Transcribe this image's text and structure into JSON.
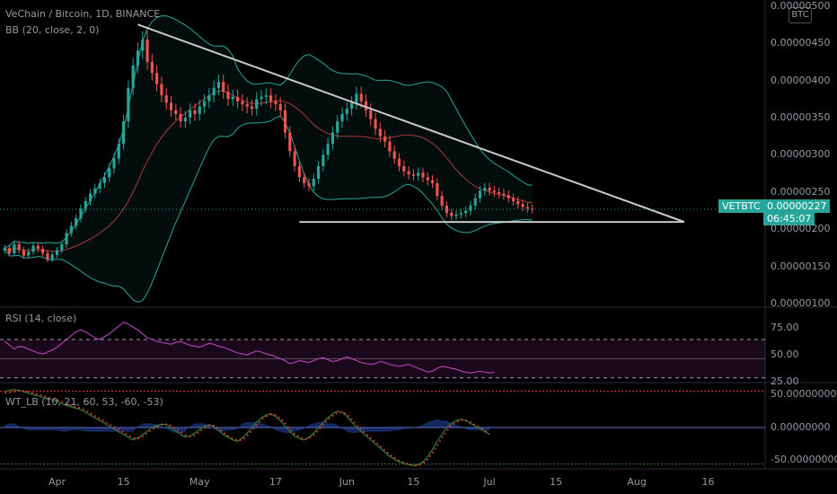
{
  "header": {
    "title": "VeChain / Bitcoin, 1D, BINANCE",
    "indicator": "BB (20, close, 2, 0)"
  },
  "currency_badge": "BTC",
  "price_badge": {
    "symbol": "VETBTC",
    "price": "0.00000227",
    "countdown": "06:45:07"
  },
  "rsi_pane": {
    "title": "RSI (14, close)",
    "ticks": [
      "75.00",
      "50.00",
      "25.00"
    ]
  },
  "wt_pane": {
    "title": "WT_LB (10, 21, 60, 53, -60, -53)",
    "ticks": [
      "50.00000000",
      "0.00000000",
      "-50.00000000"
    ]
  },
  "price_axis_ticks": [
    "0.00000500",
    "0.00000450",
    "0.00000400",
    "0.00000350",
    "0.00000300",
    "0.00000250",
    "0.00000200",
    "0.00000150",
    "0.00000100"
  ],
  "x_axis_ticks": [
    "Apr",
    "15",
    "May",
    "17",
    "Jun",
    "15",
    "Jul",
    "15",
    "Aug",
    "16"
  ],
  "colors": {
    "up": "#26a69a",
    "down": "#ef5350",
    "band": "#26a69a",
    "basis": "#a83a3a",
    "trendline": "#c8c8c8",
    "rsi": "#b03fb0",
    "wt1": "#2e7d32",
    "wt2": "#e53935",
    "wt_area": "#1e3a8a"
  },
  "chart_data": [
    {
      "type": "candlestick",
      "title": "VeChain / Bitcoin, 1D, BINANCE",
      "ylabel": "",
      "ylim": [
        1e-06,
        5e-06
      ],
      "x_range": [
        "2019-03-20",
        "2019-08-28"
      ],
      "series": [
        {
          "name": "VETBTC",
          "date_start": "2019-03-21",
          "close": [
            1.75e-06,
            1.68e-06,
            1.8e-06,
            1.72e-06,
            1.65e-06,
            1.7e-06,
            1.78e-06,
            1.74e-06,
            1.68e-06,
            1.6e-06,
            1.66e-06,
            1.72e-06,
            1.8e-06,
            1.95e-06,
            2.05e-06,
            2.15e-06,
            2.28e-06,
            2.38e-06,
            2.48e-06,
            2.55e-06,
            2.62e-06,
            2.7e-06,
            2.82e-06,
            2.95e-06,
            3.15e-06,
            3.45e-06,
            3.9e-06,
            4.2e-06,
            4.4e-06,
            4.55e-06,
            4.25e-06,
            4.1e-06,
            3.95e-06,
            3.8e-06,
            3.7e-06,
            3.6e-06,
            3.55e-06,
            3.45e-06,
            3.5e-06,
            3.6e-06,
            3.55e-06,
            3.65e-06,
            3.72e-06,
            3.8e-06,
            3.9e-06,
            3.98e-06,
            3.85e-06,
            3.75e-06,
            3.78e-06,
            3.72e-06,
            3.68e-06,
            3.65e-06,
            3.62e-06,
            3.75e-06,
            3.78e-06,
            3.8e-06,
            3.72e-06,
            3.68e-06,
            3.6e-06,
            3.3e-06,
            3.05e-06,
            2.85e-06,
            2.7e-06,
            2.62e-06,
            2.58e-06,
            2.68e-06,
            2.85e-06,
            3e-06,
            3.15e-06,
            3.3e-06,
            3.45e-06,
            3.55e-06,
            3.62e-06,
            3.7e-06,
            3.82e-06,
            3.72e-06,
            3.6e-06,
            3.48e-06,
            3.35e-06,
            3.25e-06,
            3.18e-06,
            3.05e-06,
            2.95e-06,
            2.85e-06,
            2.78e-06,
            2.74e-06,
            2.72e-06,
            2.76e-06,
            2.7e-06,
            2.66e-06,
            2.62e-06,
            2.45e-06,
            2.32e-06,
            2.22e-06,
            2.18e-06,
            2.2e-06,
            2.22e-06,
            2.25e-06,
            2.32e-06,
            2.42e-06,
            2.52e-06,
            2.56e-06,
            2.52e-06,
            2.5e-06,
            2.48e-06,
            2.46e-06,
            2.42e-06,
            2.38e-06,
            2.34e-06,
            2.3e-06,
            2.28e-06,
            2.27e-06
          ]
        }
      ],
      "bollinger": {
        "length": 20,
        "mult": 2
      },
      "annotations": [
        "descending trendline from 2019-04-18 high to 2019-08-11",
        "horizontal support at 0.00000210 from 2019-05-22 to 2019-08-11"
      ]
    },
    {
      "type": "line",
      "title": "RSI (14, close)",
      "ylim": [
        25,
        100
      ],
      "levels": [
        70,
        50,
        30
      ],
      "series": [
        {
          "name": "RSI",
          "values": [
            68,
            64,
            60,
            63,
            62,
            60,
            58,
            56,
            55,
            57,
            59,
            62,
            66,
            70,
            74,
            78,
            80,
            78,
            75,
            72,
            70,
            73,
            76,
            80,
            84,
            88,
            86,
            83,
            80,
            76,
            72,
            70,
            68,
            67,
            66,
            65,
            67,
            68,
            66,
            64,
            63,
            62,
            64,
            66,
            65,
            63,
            62,
            60,
            58,
            56,
            55,
            54,
            56,
            58,
            57,
            55,
            54,
            52,
            50,
            48,
            45,
            46,
            48,
            47,
            46,
            48,
            50,
            51,
            49,
            47,
            48,
            50,
            52,
            50,
            48,
            46,
            45,
            44,
            45,
            47,
            46,
            44,
            43,
            42,
            43,
            44,
            42,
            40,
            38,
            36,
            37,
            40,
            42,
            41,
            40,
            39,
            37,
            36,
            35,
            36,
            37,
            36,
            35,
            36
          ]
        }
      ]
    },
    {
      "type": "line",
      "title": "WT_LB (10, 21, 60, 53, -60, -53)",
      "ylim": [
        -60,
        60
      ],
      "levels": [
        53,
        0,
        -53
      ],
      "series": [
        {
          "name": "WT1",
          "values": [
            52,
            54,
            55,
            54,
            52,
            50,
            48,
            46,
            44,
            42,
            40,
            38,
            35,
            32,
            30,
            28,
            26,
            22,
            18,
            14,
            10,
            6,
            2,
            -2,
            -6,
            -10,
            -14,
            -18,
            -15,
            -10,
            -5,
            0,
            3,
            5,
            4,
            0,
            -5,
            -10,
            -14,
            -12,
            -8,
            -3,
            2,
            4,
            2,
            -4,
            -10,
            -14,
            -18,
            -20,
            -15,
            -8,
            0,
            8,
            14,
            18,
            20,
            16,
            10,
            2,
            -6,
            -12,
            -16,
            -18,
            -14,
            -8,
            0,
            8,
            14,
            20,
            24,
            22,
            16,
            8,
            0,
            -6,
            -12,
            -18,
            -24,
            -30,
            -36,
            -42,
            -46,
            -50,
            -52,
            -54,
            -55,
            -54,
            -50,
            -42,
            -32,
            -20,
            -10,
            0,
            6,
            10,
            12,
            10,
            6,
            2,
            -2,
            -6,
            -10
          ]
        },
        {
          "name": "WT2",
          "values": [
            50,
            51,
            52,
            53,
            53,
            52,
            50,
            48,
            46,
            44,
            42,
            40,
            38,
            35,
            32,
            30,
            28,
            25,
            21,
            17,
            13,
            9,
            5,
            1,
            -3,
            -7,
            -11,
            -15,
            -16,
            -13,
            -8,
            -3,
            1,
            4,
            5,
            3,
            -1,
            -6,
            -11,
            -13,
            -11,
            -6,
            -1,
            3,
            3,
            -1,
            -7,
            -12,
            -16,
            -19,
            -18,
            -12,
            -4,
            4,
            11,
            16,
            19,
            18,
            13,
            6,
            -2,
            -9,
            -14,
            -17,
            -16,
            -11,
            -4,
            4,
            11,
            17,
            22,
            23,
            19,
            12,
            4,
            -3,
            -9,
            -15,
            -21,
            -27,
            -33,
            -39,
            -44,
            -48,
            -51,
            -53,
            -55,
            -55,
            -52,
            -46,
            -37,
            -26,
            -15,
            -5,
            3,
            8,
            11,
            11,
            8,
            4,
            0,
            -4,
            -8
          ]
        }
      ]
    }
  ]
}
